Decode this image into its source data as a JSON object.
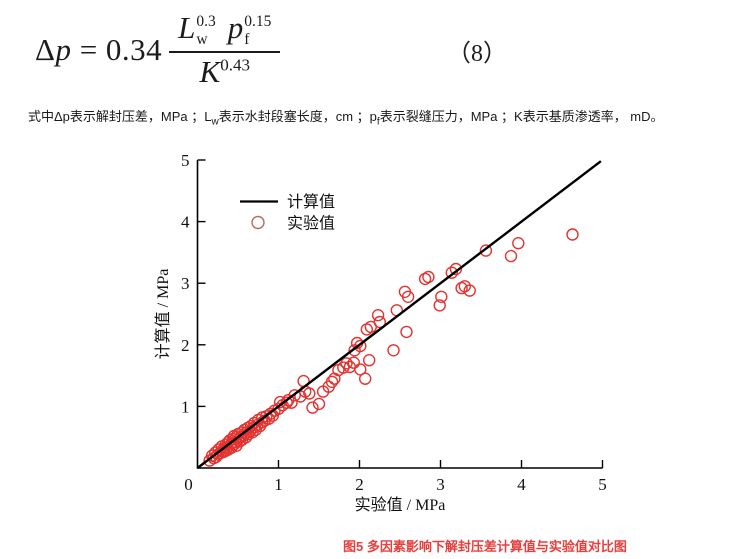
{
  "equation": {
    "delta": "Δ",
    "variable": "p",
    "relation": "=",
    "coefficient": "0.34",
    "numerator": [
      {
        "base": "L",
        "sub": "w",
        "sup": "0.3"
      },
      {
        "base": "p",
        "sub": "f",
        "sup": "0.15"
      }
    ],
    "denominator": {
      "base": "K",
      "sup": "0.43"
    },
    "tag": "（8）"
  },
  "description": {
    "segments": [
      {
        "t": "式中Δp表示解封压差，MPa ；L"
      },
      {
        "s": "w"
      },
      {
        "t": "表示水封段塞长度，cm ；p"
      },
      {
        "s": "f"
      },
      {
        "t": "表示裂缝压力，MPa ；K表示基质渗透率， mD。"
      }
    ]
  },
  "chart_data": {
    "type": "scatter",
    "title": "",
    "xlabel": "实验值 / MPa",
    "ylabel": "计算值 / MPa",
    "xlim": [
      0,
      5
    ],
    "ylim": [
      0,
      5
    ],
    "xticks": [
      0,
      1,
      2,
      3,
      4,
      5
    ],
    "yticks": [
      1,
      2,
      3,
      4,
      5
    ],
    "grid": false,
    "axis_color": "#000000",
    "legend": {
      "position": "upper-left-inside",
      "entries": [
        {
          "marker": "line",
          "label": "计算值",
          "color": "#000000"
        },
        {
          "marker": "open-circle",
          "label": "实验值",
          "color": "#b96a60"
        }
      ]
    },
    "series": [
      {
        "name": "计算值",
        "type": "line",
        "color": "#000000",
        "x": [
          0,
          4.98
        ],
        "y": [
          0,
          4.98
        ]
      },
      {
        "name": "实验值",
        "type": "scatter",
        "marker": "open-circle",
        "color": "#e23431",
        "points": [
          [
            0.15,
            0.12
          ],
          [
            0.18,
            0.2
          ],
          [
            0.2,
            0.16
          ],
          [
            0.22,
            0.25
          ],
          [
            0.23,
            0.18
          ],
          [
            0.25,
            0.22
          ],
          [
            0.26,
            0.3
          ],
          [
            0.28,
            0.24
          ],
          [
            0.3,
            0.28
          ],
          [
            0.3,
            0.35
          ],
          [
            0.32,
            0.26
          ],
          [
            0.33,
            0.32
          ],
          [
            0.35,
            0.38
          ],
          [
            0.35,
            0.28
          ],
          [
            0.36,
            0.33
          ],
          [
            0.38,
            0.42
          ],
          [
            0.38,
            0.3
          ],
          [
            0.4,
            0.36
          ],
          [
            0.4,
            0.45
          ],
          [
            0.42,
            0.33
          ],
          [
            0.42,
            0.4
          ],
          [
            0.44,
            0.47
          ],
          [
            0.45,
            0.38
          ],
          [
            0.45,
            0.52
          ],
          [
            0.47,
            0.42
          ],
          [
            0.48,
            0.5
          ],
          [
            0.48,
            0.36
          ],
          [
            0.5,
            0.46
          ],
          [
            0.5,
            0.55
          ],
          [
            0.52,
            0.43
          ],
          [
            0.53,
            0.5
          ],
          [
            0.55,
            0.58
          ],
          [
            0.55,
            0.46
          ],
          [
            0.57,
            0.53
          ],
          [
            0.58,
            0.62
          ],
          [
            0.6,
            0.5
          ],
          [
            0.6,
            0.57
          ],
          [
            0.62,
            0.65
          ],
          [
            0.63,
            0.55
          ],
          [
            0.65,
            0.6
          ],
          [
            0.66,
            0.68
          ],
          [
            0.68,
            0.58
          ],
          [
            0.7,
            0.66
          ],
          [
            0.7,
            0.73
          ],
          [
            0.72,
            0.62
          ],
          [
            0.74,
            0.7
          ],
          [
            0.75,
            0.78
          ],
          [
            0.77,
            0.68
          ],
          [
            0.8,
            0.74
          ],
          [
            0.8,
            0.82
          ],
          [
            0.83,
            0.77
          ],
          [
            0.85,
            0.84
          ],
          [
            0.88,
            0.8
          ],
          [
            0.9,
            0.88
          ],
          [
            0.93,
            0.85
          ],
          [
            0.95,
            0.93
          ],
          [
            1.0,
            0.96
          ],
          [
            1.02,
            1.07
          ],
          [
            1.05,
            1.02
          ],
          [
            1.1,
            1.06
          ],
          [
            1.12,
            1.1
          ],
          [
            1.16,
            1.06
          ],
          [
            1.2,
            1.18
          ],
          [
            1.27,
            1.16
          ],
          [
            1.31,
            1.41
          ],
          [
            1.33,
            1.24
          ],
          [
            1.38,
            1.21
          ],
          [
            1.42,
            0.98
          ],
          [
            1.5,
            1.04
          ],
          [
            1.55,
            1.24
          ],
          [
            1.62,
            1.32
          ],
          [
            1.66,
            1.4
          ],
          [
            1.69,
            1.45
          ],
          [
            1.74,
            1.59
          ],
          [
            1.8,
            1.63
          ],
          [
            1.84,
            1.7
          ],
          [
            1.88,
            1.64
          ],
          [
            1.93,
            1.71
          ],
          [
            1.94,
            1.91
          ],
          [
            1.97,
            2.03
          ],
          [
            2.01,
            1.6
          ],
          [
            2.01,
            1.98
          ],
          [
            2.07,
            1.45
          ],
          [
            2.09,
            2.25
          ],
          [
            2.12,
            1.75
          ],
          [
            2.14,
            2.29
          ],
          [
            2.23,
            2.48
          ],
          [
            2.25,
            2.37
          ],
          [
            2.42,
            1.91
          ],
          [
            2.46,
            2.56
          ],
          [
            2.56,
            2.86
          ],
          [
            2.58,
            2.21
          ],
          [
            2.6,
            2.78
          ],
          [
            2.81,
            3.07
          ],
          [
            2.85,
            3.1
          ],
          [
            2.99,
            2.64
          ],
          [
            3.01,
            2.78
          ],
          [
            3.14,
            3.17
          ],
          [
            3.19,
            3.23
          ],
          [
            3.26,
            2.92
          ],
          [
            3.3,
            2.95
          ],
          [
            3.36,
            2.88
          ],
          [
            3.56,
            3.53
          ],
          [
            3.87,
            3.44
          ],
          [
            3.96,
            3.65
          ],
          [
            4.63,
            3.79
          ]
        ]
      }
    ]
  },
  "caption": {
    "text": "图5 多因素影响下解封压差计算值与实验值对比图",
    "color": "#e5403d"
  }
}
